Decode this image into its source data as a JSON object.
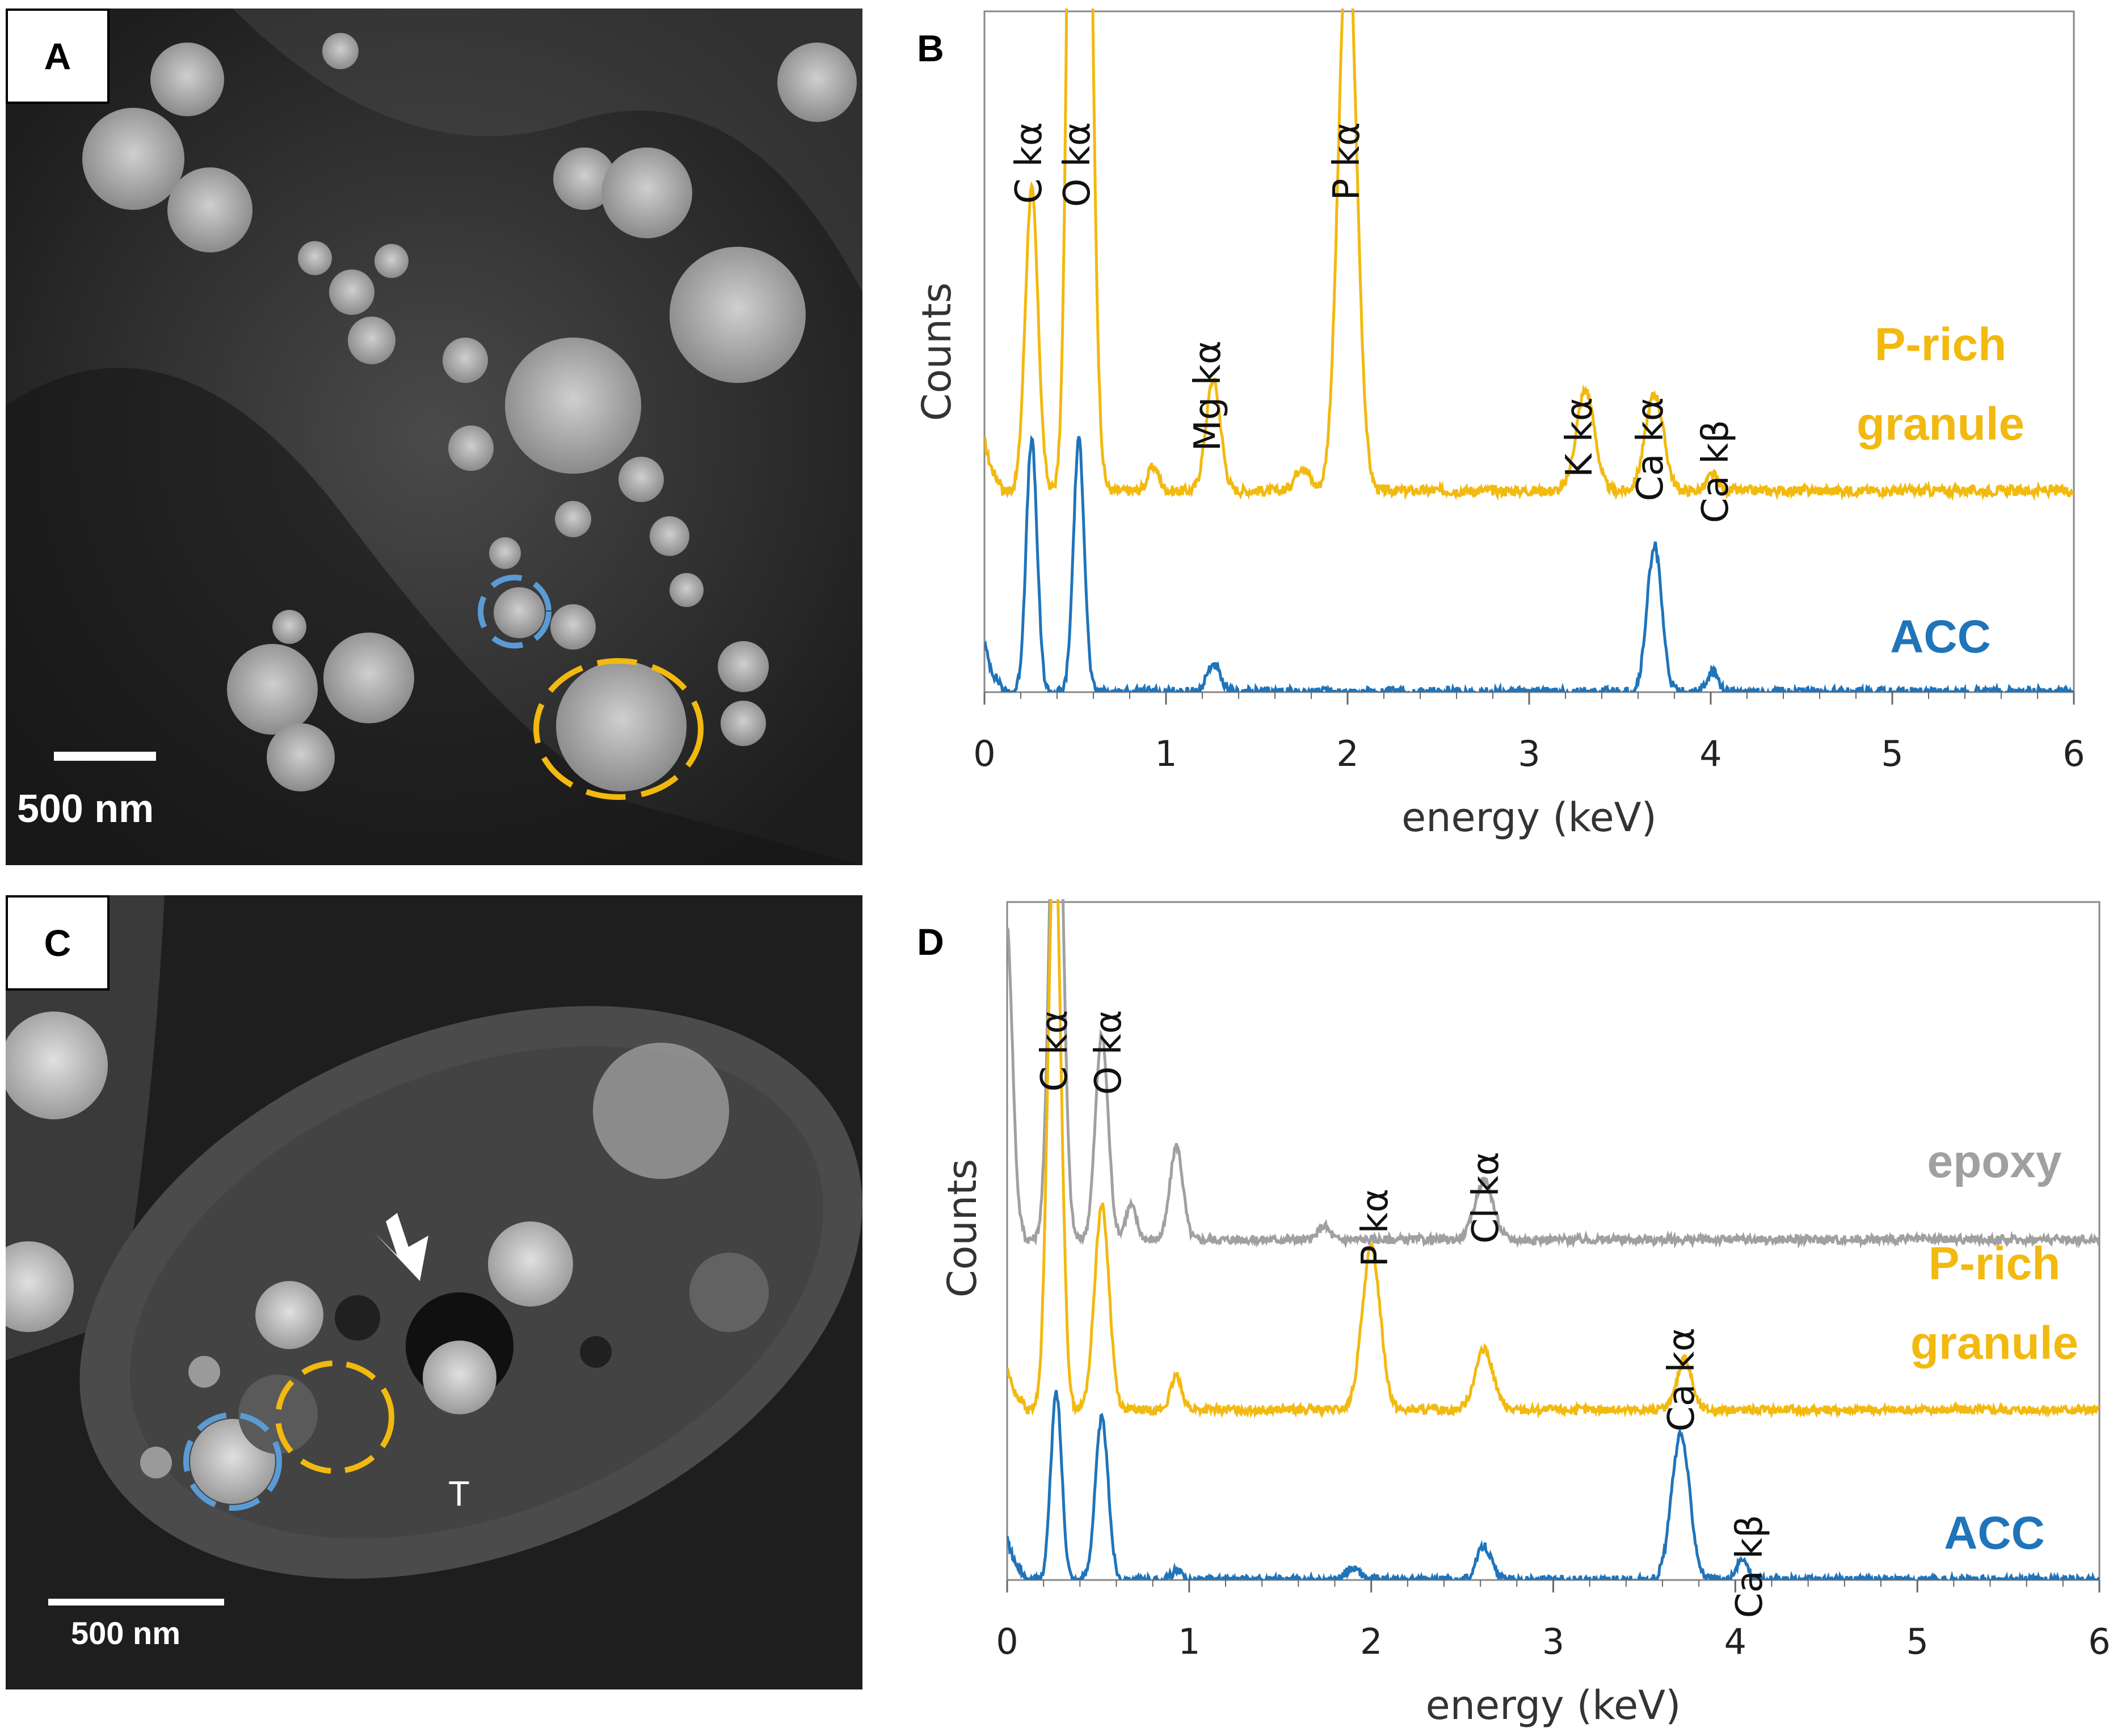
{
  "panels": {
    "a": {
      "letter": "A",
      "scalebar": "500 nm"
    },
    "b": {
      "letter": "B"
    },
    "c": {
      "letter": "C",
      "scalebar": "500 nm",
      "t_label": "T"
    },
    "d": {
      "letter": "D"
    }
  },
  "colors": {
    "p_rich": "#F2B90F",
    "acc": "#1F74BA",
    "epoxy": "#A0A0A0",
    "circle_acc": "#5B9BD5",
    "circle_p": "#F2B90F"
  },
  "chart_data": [
    {
      "type": "line",
      "panel": "B",
      "xlabel": "energy (keV)",
      "ylabel": "Counts",
      "xlim": [
        0,
        6
      ],
      "xticks": [
        "0",
        "1",
        "2",
        "3",
        "4",
        "5",
        "6"
      ],
      "legend_placement": "right",
      "series": [
        {
          "name": "P-rich granule",
          "name_lines": [
            "P-rich",
            "granule"
          ],
          "color": "#F2B90F",
          "baseline": 1.0,
          "peaks": [
            [
              0.26,
              1.5,
              0.035
            ],
            [
              0.5,
              5.5,
              0.035
            ],
            [
              0.55,
              4.5,
              0.04
            ],
            [
              0.93,
              0.12,
              0.03
            ],
            [
              1.26,
              0.55,
              0.04
            ],
            [
              1.75,
              0.12,
              0.04
            ],
            [
              2.0,
              2.8,
              0.05
            ],
            [
              3.31,
              0.5,
              0.05
            ],
            [
              3.69,
              0.48,
              0.05
            ],
            [
              4.01,
              0.08,
              0.03
            ]
          ]
        },
        {
          "name": "ACC",
          "name_lines": [
            "ACC"
          ],
          "color": "#1F74BA",
          "baseline": 0.0,
          "peaks": [
            [
              0.26,
              1.25,
              0.03
            ],
            [
              0.52,
              1.25,
              0.03
            ],
            [
              1.26,
              0.14,
              0.035
            ],
            [
              3.69,
              0.73,
              0.04
            ],
            [
              4.01,
              0.1,
              0.03
            ]
          ]
        }
      ],
      "annotations": [
        "C kα",
        "O kα",
        "Mg kα",
        "P kα",
        "K kα",
        "Ca kα",
        "Ca kβ"
      ]
    },
    {
      "type": "line",
      "panel": "D",
      "xlabel": "energy (keV)",
      "ylabel": "Counts",
      "xlim": [
        0,
        6
      ],
      "xticks": [
        "0",
        "1",
        "2",
        "3",
        "4",
        "5",
        "6"
      ],
      "legend_placement": "right",
      "series": [
        {
          "name": "epoxy",
          "name_lines": [
            "epoxy"
          ],
          "color": "#A0A0A0",
          "baseline": 2.0,
          "peaks": [
            [
              0.0,
              1.6,
              0.03
            ],
            [
              0.27,
              3.5,
              0.035
            ],
            [
              0.52,
              1.2,
              0.035
            ],
            [
              0.68,
              0.2,
              0.03
            ],
            [
              0.93,
              0.55,
              0.035
            ],
            [
              1.74,
              0.08,
              0.03
            ],
            [
              2.62,
              0.35,
              0.05
            ]
          ]
        },
        {
          "name": "P-rich granule",
          "name_lines": [
            "P-rich",
            "granule"
          ],
          "color": "#F2B90F",
          "baseline": 1.0,
          "peaks": [
            [
              0.26,
              3.5,
              0.035
            ],
            [
              0.52,
              1.2,
              0.04
            ],
            [
              0.93,
              0.2,
              0.03
            ],
            [
              2.0,
              0.95,
              0.05
            ],
            [
              2.62,
              0.35,
              0.05
            ],
            [
              3.72,
              0.3,
              0.04
            ]
          ]
        },
        {
          "name": "ACC",
          "name_lines": [
            "ACC"
          ],
          "color": "#1F74BA",
          "baseline": 0.0,
          "peaks": [
            [
              0.27,
              1.1,
              0.03
            ],
            [
              0.52,
              0.95,
              0.035
            ],
            [
              0.93,
              0.05,
              0.03
            ],
            [
              1.9,
              0.07,
              0.04
            ],
            [
              2.62,
              0.2,
              0.04
            ],
            [
              3.7,
              0.85,
              0.05
            ],
            [
              4.04,
              0.12,
              0.03
            ]
          ]
        }
      ],
      "annotations": [
        "C kα",
        "O kα",
        "P kα",
        "Cl kα",
        "Ca kα",
        "Ca kβ"
      ]
    }
  ]
}
